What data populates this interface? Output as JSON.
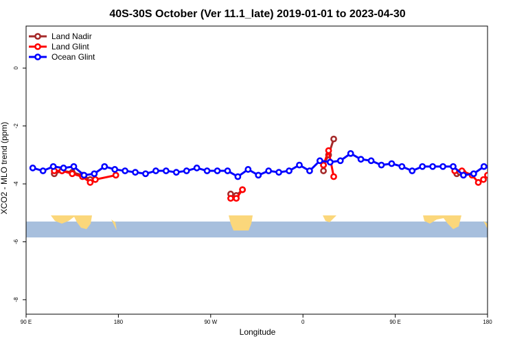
{
  "chart_data": {
    "type": "line",
    "title": "40S-30S October (Ver 11.1_late)   2019-01-01 to 2023-04-30",
    "xlabel": "Longitude",
    "ylabel": "XCO2 - MLO trend (ppm)",
    "xlim": [
      90,
      540
    ],
    "ylim": [
      -8.5,
      1.45
    ],
    "x_ticks": [
      {
        "value": 90,
        "label": "90 E"
      },
      {
        "value": 180,
        "label": "180"
      },
      {
        "value": 270,
        "label": "90 W"
      },
      {
        "value": 360,
        "label": "0"
      },
      {
        "value": 450,
        "label": "90 E"
      },
      {
        "value": 540,
        "label": "180"
      }
    ],
    "y_ticks": [
      {
        "value": 0,
        "label": "0"
      },
      {
        "value": -2,
        "label": "-2"
      },
      {
        "value": -4,
        "label": "-4"
      },
      {
        "value": -6,
        "label": "-6"
      },
      {
        "value": -8,
        "label": "-8"
      }
    ],
    "grid": false,
    "legend": "top-left",
    "map_band": {
      "y_top": -5.3,
      "y_bottom": -5.85,
      "ocean_color": "#a7bfdd",
      "land_color": "#fbd77b"
    },
    "series": [
      {
        "name": "Land Nadir",
        "color": "#a52a2a",
        "segments": [
          [
            [
              117.5,
              -3.65
            ],
            [
              125,
              -3.55
            ],
            [
              135,
              -3.6
            ],
            [
              145,
              -3.7
            ],
            [
              152.5,
              -3.85
            ],
            [
              157.5,
              -3.85
            ]
          ],
          [
            [
              289.5,
              -4.35
            ],
            [
              295,
              -4.4
            ],
            [
              301,
              -4.2
            ]
          ],
          [
            [
              380,
              -3.55
            ],
            [
              380,
              -3.35
            ],
            [
              385,
              -3.0
            ],
            [
              390,
              -2.45
            ]
          ],
          [
            [
              510,
              -3.65
            ],
            [
              513,
              -3.6
            ],
            [
              516,
              -3.6
            ]
          ]
        ]
      },
      {
        "name": "Land Glint",
        "color": "#ff0000",
        "segments": [
          [
            [
              117.5,
              -3.55
            ],
            [
              125,
              -3.55
            ],
            [
              135,
              -3.65
            ],
            [
              145,
              -3.75
            ],
            [
              152.5,
              -3.95
            ],
            [
              157.5,
              -3.85
            ],
            [
              177.5,
              -3.7
            ]
          ],
          [
            [
              289.5,
              -4.5
            ],
            [
              295,
              -4.5
            ],
            [
              301,
              -4.2
            ]
          ],
          [
            [
              380,
              -3.35
            ],
            [
              385,
              -2.85
            ],
            [
              390,
              -3.75
            ]
          ],
          [
            [
              508,
              -3.55
            ],
            [
              515,
              -3.55
            ],
            [
              525,
              -3.7
            ],
            [
              531,
              -3.95
            ],
            [
              536,
              -3.85
            ],
            [
              540,
              -3.7
            ]
          ]
        ]
      },
      {
        "name": "Ocean Glint",
        "color": "#0000ff",
        "segments": [
          [
            [
              96.5,
              -3.45
            ],
            [
              106.5,
              -3.55
            ],
            [
              116.5,
              -3.4
            ],
            [
              126.5,
              -3.45
            ],
            [
              136.5,
              -3.4
            ],
            [
              146.5,
              -3.7
            ],
            [
              156.5,
              -3.65
            ],
            [
              166.5,
              -3.4
            ],
            [
              176.5,
              -3.5
            ],
            [
              186.5,
              -3.55
            ],
            [
              196.5,
              -3.6
            ],
            [
              206.5,
              -3.65
            ],
            [
              216.5,
              -3.55
            ],
            [
              226.5,
              -3.55
            ],
            [
              236.5,
              -3.6
            ],
            [
              246.5,
              -3.55
            ],
            [
              256.5,
              -3.45
            ],
            [
              266.5,
              -3.55
            ],
            [
              276.5,
              -3.55
            ],
            [
              286.5,
              -3.55
            ],
            [
              296.5,
              -3.75
            ],
            [
              306.5,
              -3.5
            ],
            [
              316.5,
              -3.7
            ],
            [
              326.5,
              -3.55
            ],
            [
              336.5,
              -3.6
            ],
            [
              346.5,
              -3.55
            ],
            [
              356.5,
              -3.35
            ],
            [
              366.5,
              -3.55
            ],
            [
              376.5,
              -3.2
            ],
            [
              386.5,
              -3.25
            ],
            [
              396.5,
              -3.2
            ],
            [
              406.5,
              -2.95
            ],
            [
              416.5,
              -3.15
            ],
            [
              426.5,
              -3.2
            ],
            [
              436.5,
              -3.35
            ],
            [
              446.5,
              -3.3
            ],
            [
              456.5,
              -3.4
            ],
            [
              466.5,
              -3.55
            ],
            [
              476.5,
              -3.4
            ],
            [
              486.5,
              -3.4
            ],
            [
              496.5,
              -3.4
            ],
            [
              506.5,
              -3.4
            ],
            [
              516.5,
              -3.7
            ],
            [
              526.5,
              -3.65
            ],
            [
              536.5,
              -3.4
            ],
            [
              546.5,
              -3.5
            ]
          ]
        ]
      }
    ]
  }
}
